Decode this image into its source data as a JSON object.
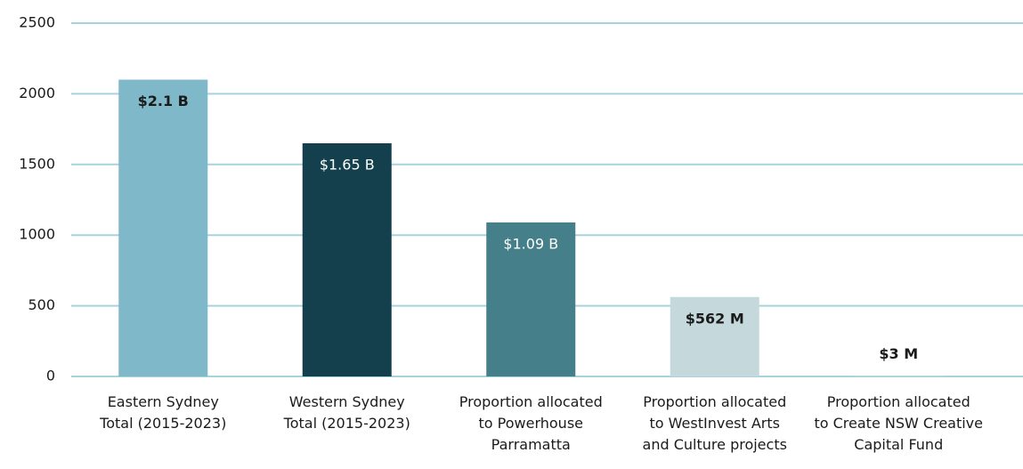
{
  "chart_data": {
    "type": "bar",
    "categories": [
      "Eastern Sydney\nTotal (2015-2023)",
      "Western Sydney\nTotal (2015-2023)",
      "Proportion allocated\nto Powerhouse\nParramatta",
      "Proportion allocated\nto WestInvest Arts\nand Culture projects",
      "Proportion allocated\nto Create NSW Creative\nCapital Fund"
    ],
    "values": [
      2100,
      1650,
      1090,
      562,
      3
    ],
    "value_labels": [
      "$2.1 B",
      "$1.65 B",
      "$1.09 B",
      "$562 M",
      "$3 M"
    ],
    "colors": [
      "#7fb8c9",
      "#143f4d",
      "#457f8a",
      "#c5d9dc",
      "#c5d9dc"
    ],
    "ylim": [
      0,
      2500
    ],
    "yticks": [
      0,
      500,
      1000,
      1500,
      2000,
      2500
    ],
    "grid": true
  }
}
